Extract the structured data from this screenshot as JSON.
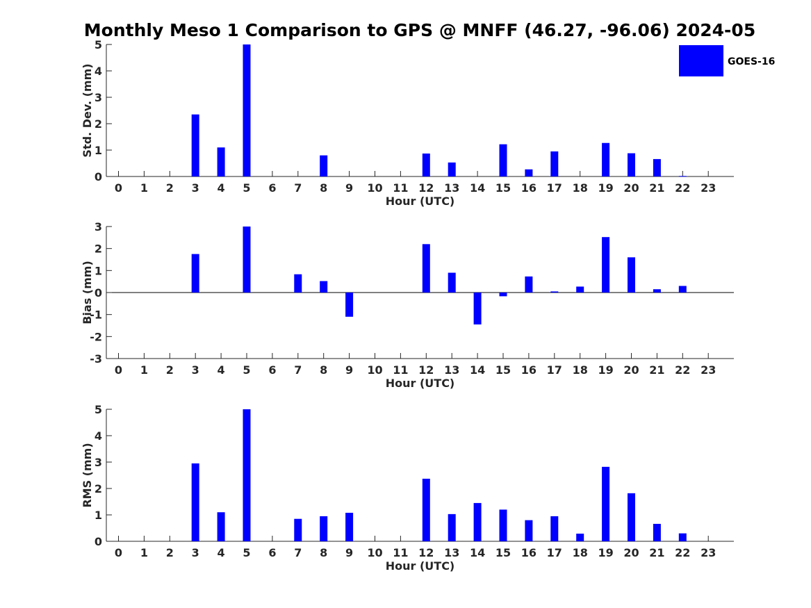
{
  "title": "Monthly Meso 1 Comparison to GPS @ MNFF (46.27, -96.06) 2024-05",
  "legend": {
    "label": "GOES-16",
    "color": "#0000ff",
    "placement": "top-right"
  },
  "chart_data": [
    {
      "type": "bar",
      "xlabel": "Hour (UTC)",
      "ylabel": "Std. Dev. (mm)",
      "ylim": [
        0,
        5
      ],
      "yticks": [
        "0",
        "1",
        "2",
        "3",
        "4",
        "5"
      ],
      "categories": [
        "0",
        "1",
        "2",
        "3",
        "4",
        "5",
        "6",
        "7",
        "8",
        "9",
        "10",
        "11",
        "12",
        "13",
        "14",
        "15",
        "16",
        "17",
        "18",
        "19",
        "20",
        "21",
        "22",
        "23"
      ],
      "series": [
        {
          "name": "GOES-16",
          "values": [
            0,
            0,
            0,
            2.35,
            1.1,
            5.0,
            0,
            0,
            0.8,
            0,
            0,
            0,
            0.87,
            0.53,
            0,
            1.22,
            0.27,
            0.95,
            0,
            1.27,
            0.88,
            0.66,
            0.02,
            0
          ]
        }
      ]
    },
    {
      "type": "bar",
      "xlabel": "Hour (UTC)",
      "ylabel": "Bias (mm)",
      "ylim": [
        -3,
        3
      ],
      "yticks": [
        "-3",
        "-2",
        "-1",
        "0",
        "1",
        "2",
        "3"
      ],
      "categories": [
        "0",
        "1",
        "2",
        "3",
        "4",
        "5",
        "6",
        "7",
        "8",
        "9",
        "10",
        "11",
        "12",
        "13",
        "14",
        "15",
        "16",
        "17",
        "18",
        "19",
        "20",
        "21",
        "22",
        "23"
      ],
      "series": [
        {
          "name": "GOES-16",
          "values": [
            0,
            0,
            0,
            1.75,
            0,
            3.0,
            0,
            0.83,
            0.52,
            -1.1,
            0,
            0,
            2.2,
            0.9,
            -1.45,
            -0.17,
            0.73,
            0.05,
            0.27,
            2.52,
            1.6,
            0.15,
            0.3,
            0
          ]
        }
      ]
    },
    {
      "type": "bar",
      "xlabel": "Hour (UTC)",
      "ylabel": "RMS (mm)",
      "ylim": [
        0,
        5
      ],
      "yticks": [
        "0",
        "1",
        "2",
        "3",
        "4",
        "5"
      ],
      "categories": [
        "0",
        "1",
        "2",
        "3",
        "4",
        "5",
        "6",
        "7",
        "8",
        "9",
        "10",
        "11",
        "12",
        "13",
        "14",
        "15",
        "16",
        "17",
        "18",
        "19",
        "20",
        "21",
        "22",
        "23"
      ],
      "series": [
        {
          "name": "GOES-16",
          "values": [
            0,
            0,
            0,
            2.95,
            1.1,
            5.0,
            0,
            0.85,
            0.95,
            1.08,
            0,
            0,
            2.37,
            1.03,
            1.45,
            1.2,
            0.8,
            0.95,
            0.29,
            2.82,
            1.82,
            0.66,
            0.3,
            0
          ]
        }
      ]
    }
  ]
}
